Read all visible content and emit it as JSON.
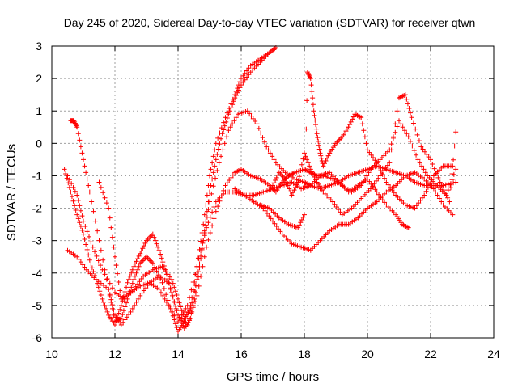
{
  "chart_data": {
    "type": "scatter",
    "title": "Day 245 of 2020, Sidereal Day-to-day VTEC variation (SDTVAR) for receiver qtwn",
    "xlabel": "GPS time / hours",
    "ylabel": "SDTVAR / TECUs",
    "xlim": [
      10,
      24
    ],
    "ylim": [
      -6,
      3
    ],
    "xticks": [
      "10",
      "12",
      "14",
      "16",
      "18",
      "20",
      "22",
      "24"
    ],
    "yticks": [
      "-6",
      "-5",
      "-4",
      "-3",
      "-2",
      "-1",
      "0",
      "1",
      "2",
      "3"
    ],
    "grid": true,
    "marker": "plus",
    "color": "#ff0000",
    "series": [
      {
        "x": [
          10.6,
          10.7,
          10.8,
          11.0,
          11.2,
          11.5,
          11.8,
          12.0,
          12.2,
          12.4,
          12.6,
          12.8,
          13.0,
          13.2,
          13.5,
          13.8,
          14.0,
          14.2,
          14.4,
          14.6,
          14.8,
          15.0,
          15.2,
          15.5,
          15.8,
          16.0,
          16.3,
          16.6,
          16.9,
          17.1
        ],
        "y": [
          0.7,
          0.7,
          0.5,
          -0.5,
          -1.5,
          -3.0,
          -4.5,
          -5.5,
          -5.4,
          -4.8,
          -4.2,
          -3.7,
          -3.5,
          -3.7,
          -4.3,
          -5.2,
          -5.8,
          -5.5,
          -5.0,
          -3.8,
          -2.5,
          -1.0,
          0.0,
          0.8,
          1.5,
          2.0,
          2.4,
          2.6,
          2.8,
          2.95
        ]
      },
      {
        "x": [
          10.4,
          10.6,
          10.8,
          11.0,
          11.2,
          11.4,
          11.6,
          11.8,
          12.0,
          12.2,
          12.4,
          12.6,
          12.8,
          13.0,
          13.2,
          13.4,
          13.6,
          13.8,
          14.0,
          14.2,
          14.4,
          14.6,
          14.8,
          15.0,
          15.2,
          15.4,
          15.6,
          15.8,
          16.0,
          16.3,
          16.6,
          16.9
        ],
        "y": [
          -0.8,
          -1.5,
          -2.2,
          -2.8,
          -3.6,
          -4.2,
          -4.8,
          -5.3,
          -5.6,
          -5.0,
          -4.3,
          -3.8,
          -3.4,
          -3.0,
          -2.8,
          -3.3,
          -3.9,
          -4.6,
          -5.3,
          -5.7,
          -5.4,
          -4.4,
          -3.0,
          -1.5,
          -0.5,
          0.3,
          0.9,
          1.4,
          1.8,
          2.2,
          2.5,
          2.8
        ]
      },
      {
        "x": [
          10.5,
          10.8,
          11.0,
          11.3,
          11.6,
          12.0,
          12.3,
          12.6,
          12.9,
          13.2,
          13.5,
          13.8,
          14.0,
          14.2,
          14.4,
          14.6,
          14.8,
          15.0,
          15.3,
          15.6,
          15.9,
          16.2,
          16.5,
          16.8,
          17.1,
          17.4,
          17.7,
          18.0,
          18.2,
          18.5,
          18.8,
          19.1,
          19.4,
          19.7,
          20.0,
          20.3,
          20.6,
          20.9,
          21.2,
          21.5,
          21.8,
          22.1,
          22.4,
          22.8
        ],
        "y": [
          -1.0,
          -1.6,
          -2.4,
          -3.2,
          -3.9,
          -4.6,
          -4.8,
          -4.5,
          -4.1,
          -3.9,
          -3.8,
          -4.2,
          -4.8,
          -5.4,
          -5.1,
          -4.2,
          -3.0,
          -1.8,
          -0.6,
          0.4,
          0.9,
          1.0,
          0.6,
          -0.1,
          -0.6,
          -0.9,
          -1.1,
          -1.2,
          -1.3,
          -1.4,
          -1.3,
          -1.2,
          -1.0,
          -0.9,
          -0.8,
          -0.7,
          -0.8,
          -0.9,
          -1.0,
          -1.2,
          -1.3,
          -1.3,
          -1.3,
          -1.2
        ]
      },
      {
        "x": [
          10.5,
          10.8,
          11.1,
          11.4,
          11.8,
          12.0,
          12.2,
          12.5,
          12.8,
          13.1,
          13.4,
          13.7,
          14.0,
          14.3,
          14.6,
          14.9,
          15.2,
          15.5,
          15.8,
          16.0,
          16.3,
          16.6,
          16.9,
          17.1,
          17.3,
          17.5,
          17.7,
          18.0,
          18.2,
          18.4,
          18.6,
          18.9,
          19.2,
          19.5,
          19.8,
          20.1,
          20.4,
          20.7,
          21.0,
          21.3,
          21.6,
          21.9,
          22.2,
          22.5,
          22.8
        ],
        "y": [
          -3.3,
          -3.5,
          -3.9,
          -4.2,
          -4.5,
          -5.3,
          -5.6,
          -5.2,
          -4.7,
          -4.3,
          -4.1,
          -4.3,
          -5.3,
          -5.6,
          -4.7,
          -3.2,
          -2.1,
          -1.3,
          -0.9,
          -0.8,
          -1.0,
          -1.1,
          -1.3,
          -1.5,
          -1.2,
          -1.0,
          -0.9,
          -0.8,
          -0.9,
          -1.0,
          -1.0,
          -1.1,
          -1.3,
          -1.5,
          -1.3,
          -0.8,
          -0.5,
          -0.2,
          0.7,
          0.2,
          -0.5,
          -1.0,
          -1.3,
          -1.6,
          -0.8
        ]
      },
      {
        "x": [
          11.5,
          11.8,
          12.0,
          12.2,
          12.5,
          12.8,
          13.1,
          13.4,
          13.7,
          14.0,
          14.3,
          14.6,
          14.9,
          15.2,
          15.5,
          15.8,
          16.1,
          16.4,
          16.7,
          17.0,
          17.3,
          17.6,
          17.9,
          18.2,
          18.5,
          18.8,
          19.1,
          19.4,
          19.7,
          20.0,
          20.3,
          20.6,
          20.9,
          21.1,
          21.3
        ],
        "y": [
          -1.2,
          -2.0,
          -3.5,
          -4.8,
          -4.6,
          -4.4,
          -4.3,
          -4.5,
          -5.0,
          -5.5,
          -5.0,
          -3.8,
          -2.6,
          -1.8,
          -1.5,
          -1.5,
          -1.6,
          -1.6,
          -1.5,
          -1.4,
          -1.3,
          -1.2,
          -1.4,
          -1.3,
          -1.0,
          -0.9,
          -1.2,
          -1.5,
          -1.3,
          -1.1,
          -1.5,
          -1.9,
          -2.2,
          -2.5,
          -2.6
        ]
      },
      {
        "x": [
          15.8,
          16.1,
          16.4,
          16.7,
          17.0,
          17.3,
          17.6,
          17.9,
          18.2,
          18.5,
          18.8,
          19.1,
          19.4,
          19.7,
          20.0,
          20.3,
          20.6,
          20.9,
          21.2,
          21.5,
          21.8,
          22.1,
          22.4,
          22.7
        ],
        "y": [
          -1.4,
          -1.6,
          -1.8,
          -2.0,
          -2.4,
          -2.8,
          -3.1,
          -3.2,
          -3.3,
          -3.0,
          -2.7,
          -2.5,
          -2.5,
          -2.3,
          -2.0,
          -1.8,
          -1.5,
          -1.3,
          -1.0,
          -0.9,
          -1.1,
          -1.4,
          -1.9,
          -2.2
        ]
      },
      {
        "x": [
          16.6,
          16.9,
          17.2,
          17.5,
          17.8,
          18.0,
          18.1,
          18.2,
          18.3,
          18.4,
          18.5,
          18.6,
          18.8,
          19.0,
          19.2,
          19.4,
          19.6,
          19.8,
          20.0,
          20.3,
          20.6,
          20.9,
          21.2,
          21.5,
          21.8,
          22.1,
          22.4,
          22.7
        ],
        "y": [
          -1.9,
          -2.0,
          -2.3,
          -2.5,
          -2.6,
          -2.2,
          2.2,
          2.0,
          1.0,
          0.3,
          -0.3,
          -0.7,
          -0.3,
          0.0,
          0.2,
          0.5,
          0.9,
          0.8,
          -0.2,
          -0.6,
          -1.2,
          -1.6,
          -1.9,
          -2.0,
          -1.6,
          -1.0,
          -0.7,
          -0.7
        ]
      },
      {
        "x": [
          17.0,
          17.2,
          17.4,
          17.6,
          17.8,
          18.0,
          18.2,
          18.4,
          18.6,
          18.9,
          19.2,
          19.5,
          19.8,
          20.1,
          20.4,
          20.7,
          21.0,
          21.2,
          21.4,
          21.7,
          22.0,
          22.3,
          22.6,
          22.8
        ],
        "y": [
          -1.3,
          -0.9,
          -1.1,
          -1.6,
          -1.2,
          -0.3,
          -0.8,
          -1.2,
          -1.5,
          -1.8,
          -2.2,
          -2.0,
          -1.7,
          -1.4,
          -1.0,
          -0.6,
          1.4,
          1.5,
          0.8,
          -0.1,
          -0.5,
          -1.2,
          -1.8,
          0.35
        ]
      }
    ]
  }
}
